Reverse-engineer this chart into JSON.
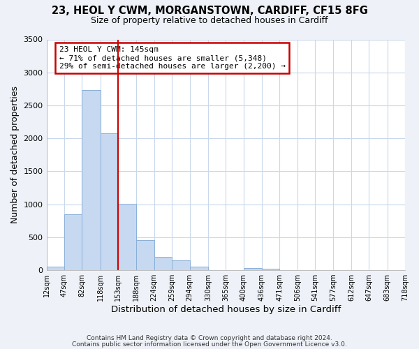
{
  "title": "23, HEOL Y CWM, MORGANSTOWN, CARDIFF, CF15 8FG",
  "subtitle": "Size of property relative to detached houses in Cardiff",
  "xlabel": "Distribution of detached houses by size in Cardiff",
  "ylabel": "Number of detached properties",
  "bar_edges": [
    12,
    47,
    82,
    118,
    153,
    188,
    224,
    259,
    294,
    330,
    365,
    400,
    436,
    471,
    506,
    541,
    577,
    612,
    647,
    683,
    718
  ],
  "bar_heights": [
    55,
    850,
    2730,
    2080,
    1010,
    455,
    200,
    145,
    55,
    0,
    0,
    30,
    20,
    0,
    0,
    0,
    0,
    0,
    0,
    0
  ],
  "bar_color": "#c6d9f0",
  "bar_edgecolor": "#8ab0d8",
  "vline_x": 153,
  "vline_color": "#cc0000",
  "annotation_line1": "23 HEOL Y CWM: 145sqm",
  "annotation_line2": "← 71% of detached houses are smaller (5,348)",
  "annotation_line3": "29% of semi-detached houses are larger (2,200) →",
  "annotation_box_color": "white",
  "annotation_box_edgecolor": "#cc0000",
  "tick_labels": [
    "12sqm",
    "47sqm",
    "82sqm",
    "118sqm",
    "153sqm",
    "188sqm",
    "224sqm",
    "259sqm",
    "294sqm",
    "330sqm",
    "365sqm",
    "400sqm",
    "436sqm",
    "471sqm",
    "506sqm",
    "541sqm",
    "577sqm",
    "612sqm",
    "647sqm",
    "683sqm",
    "718sqm"
  ],
  "ylim": [
    0,
    3500
  ],
  "yticks": [
    0,
    500,
    1000,
    1500,
    2000,
    2500,
    3000,
    3500
  ],
  "footer_line1": "Contains HM Land Registry data © Crown copyright and database right 2024.",
  "footer_line2": "Contains public sector information licensed under the Open Government Licence v3.0.",
  "bg_color": "#eef2f8",
  "plot_bg_color": "white",
  "grid_color": "#c8d8ea"
}
